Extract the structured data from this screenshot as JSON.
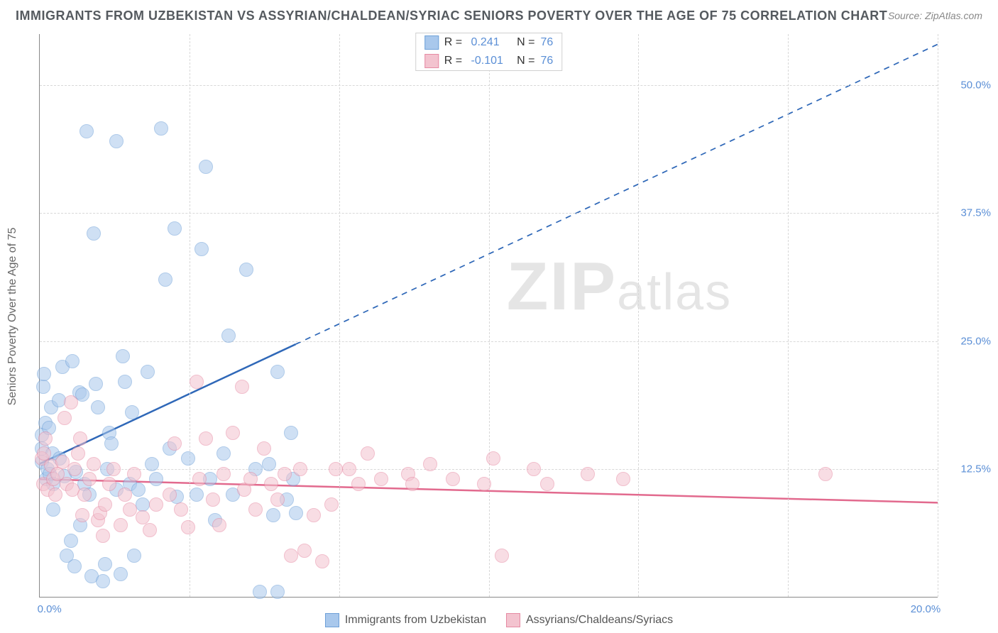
{
  "title": "IMMIGRANTS FROM UZBEKISTAN VS ASSYRIAN/CHALDEAN/SYRIAC SENIORS POVERTY OVER THE AGE OF 75 CORRELATION CHART",
  "source_label": "Source: ZipAtlas.com",
  "y_axis_label": "Seniors Poverty Over the Age of 75",
  "watermark": "ZIPatlas",
  "chart": {
    "type": "scatter-correlation",
    "background_color": "#ffffff",
    "grid_color": "#d8d8d8",
    "axis_color": "#888888",
    "xlim": [
      0,
      20
    ],
    "ylim": [
      0,
      55
    ],
    "x_ticks": [
      0,
      3.33,
      6.67,
      10,
      13.33,
      16.67,
      20
    ],
    "y_ticks": [
      12.5,
      25.0,
      37.5,
      50.0
    ],
    "x_tick_labels": {
      "0": "0.0%",
      "20": "20.0%"
    },
    "y_tick_labels": [
      "12.5%",
      "25.0%",
      "37.5%",
      "50.0%"
    ],
    "y_tick_color": "#5b8fd6",
    "x_tick_color": "#5b8fd6",
    "marker_radius": 10,
    "marker_opacity": 0.55,
    "series": [
      {
        "key": "uzbekistan",
        "label": "Immigrants from Uzbekistan",
        "color_fill": "#a9c8ec",
        "color_stroke": "#6ea0d8",
        "r_value": "0.241",
        "n_value": "76",
        "trend": {
          "x0": 0,
          "y0": 13.0,
          "x1": 20,
          "y1": 54.0,
          "solid_until_x": 5.7,
          "color": "#2f68b8",
          "width": 2.5
        },
        "points": [
          [
            0.05,
            14.5
          ],
          [
            0.05,
            13.2
          ],
          [
            0.05,
            15.8
          ],
          [
            0.08,
            20.5
          ],
          [
            0.1,
            21.8
          ],
          [
            0.12,
            17.0
          ],
          [
            0.15,
            11.5
          ],
          [
            0.18,
            12.5
          ],
          [
            0.2,
            16.5
          ],
          [
            0.22,
            12.0
          ],
          [
            0.25,
            18.5
          ],
          [
            0.28,
            14.0
          ],
          [
            0.3,
            11.0
          ],
          [
            0.42,
            19.2
          ],
          [
            0.45,
            13.5
          ],
          [
            0.5,
            22.5
          ],
          [
            0.55,
            11.8
          ],
          [
            0.6,
            4.0
          ],
          [
            0.7,
            5.5
          ],
          [
            0.72,
            23.0
          ],
          [
            0.78,
            3.0
          ],
          [
            0.8,
            12.2
          ],
          [
            0.88,
            20.0
          ],
          [
            0.95,
            19.8
          ],
          [
            1.0,
            11.0
          ],
          [
            1.05,
            45.5
          ],
          [
            1.1,
            10.0
          ],
          [
            1.15,
            2.0
          ],
          [
            1.2,
            35.5
          ],
          [
            1.25,
            20.8
          ],
          [
            1.3,
            18.5
          ],
          [
            1.4,
            1.5
          ],
          [
            1.45,
            3.2
          ],
          [
            1.5,
            12.5
          ],
          [
            1.55,
            16.0
          ],
          [
            1.6,
            15.0
          ],
          [
            1.7,
            10.5
          ],
          [
            1.8,
            2.2
          ],
          [
            1.85,
            23.5
          ],
          [
            1.9,
            21.0
          ],
          [
            2.0,
            11.0
          ],
          [
            2.05,
            18.0
          ],
          [
            2.1,
            4.0
          ],
          [
            2.2,
            10.5
          ],
          [
            2.3,
            9.0
          ],
          [
            2.4,
            22.0
          ],
          [
            2.5,
            13.0
          ],
          [
            2.6,
            11.5
          ],
          [
            2.7,
            45.8
          ],
          [
            2.8,
            31.0
          ],
          [
            2.9,
            14.5
          ],
          [
            3.0,
            36.0
          ],
          [
            3.05,
            9.8
          ],
          [
            3.3,
            13.5
          ],
          [
            3.5,
            10.0
          ],
          [
            3.6,
            34.0
          ],
          [
            3.7,
            42.0
          ],
          [
            3.8,
            11.5
          ],
          [
            3.9,
            7.5
          ],
          [
            4.1,
            14.0
          ],
          [
            4.2,
            25.5
          ],
          [
            4.3,
            10.0
          ],
          [
            4.6,
            32.0
          ],
          [
            4.8,
            12.5
          ],
          [
            4.9,
            0.5
          ],
          [
            5.1,
            13.0
          ],
          [
            5.2,
            8.0
          ],
          [
            5.3,
            22.0
          ],
          [
            5.5,
            9.5
          ],
          [
            5.6,
            16.0
          ],
          [
            5.65,
            11.5
          ],
          [
            5.7,
            8.2
          ],
          [
            5.3,
            0.5
          ],
          [
            1.7,
            44.5
          ],
          [
            0.3,
            8.5
          ],
          [
            0.9,
            7.0
          ]
        ]
      },
      {
        "key": "assyrian",
        "label": "Assyrians/Chaldeans/Syriacs",
        "color_fill": "#f3c3cf",
        "color_stroke": "#e68aa3",
        "r_value": "-0.101",
        "n_value": "76",
        "trend": {
          "x0": 0,
          "y0": 11.5,
          "x1": 20,
          "y1": 9.2,
          "solid_until_x": 20,
          "color": "#e26a8e",
          "width": 2.5
        },
        "points": [
          [
            0.05,
            13.5
          ],
          [
            0.08,
            11.0
          ],
          [
            0.1,
            14.0
          ],
          [
            0.12,
            15.5
          ],
          [
            0.18,
            10.5
          ],
          [
            0.25,
            12.8
          ],
          [
            0.3,
            11.5
          ],
          [
            0.35,
            10.0
          ],
          [
            0.4,
            12.0
          ],
          [
            0.5,
            13.2
          ],
          [
            0.55,
            17.5
          ],
          [
            0.6,
            11.0
          ],
          [
            0.7,
            19.0
          ],
          [
            0.72,
            10.5
          ],
          [
            0.78,
            12.5
          ],
          [
            0.85,
            14.0
          ],
          [
            0.9,
            15.5
          ],
          [
            0.95,
            8.0
          ],
          [
            1.0,
            10.0
          ],
          [
            1.1,
            11.5
          ],
          [
            1.2,
            13.0
          ],
          [
            1.3,
            7.5
          ],
          [
            1.35,
            8.2
          ],
          [
            1.4,
            6.0
          ],
          [
            1.45,
            9.0
          ],
          [
            1.55,
            11.0
          ],
          [
            1.65,
            12.5
          ],
          [
            1.8,
            7.0
          ],
          [
            1.9,
            10.0
          ],
          [
            2.0,
            8.5
          ],
          [
            2.1,
            12.0
          ],
          [
            2.3,
            7.8
          ],
          [
            2.45,
            6.5
          ],
          [
            2.6,
            9.0
          ],
          [
            2.9,
            10.0
          ],
          [
            3.0,
            15.0
          ],
          [
            3.15,
            8.5
          ],
          [
            3.3,
            6.8
          ],
          [
            3.5,
            21.0
          ],
          [
            3.55,
            11.5
          ],
          [
            3.7,
            15.5
          ],
          [
            3.85,
            9.5
          ],
          [
            4.0,
            7.0
          ],
          [
            4.1,
            12.0
          ],
          [
            4.3,
            16.0
          ],
          [
            4.5,
            20.5
          ],
          [
            4.55,
            10.5
          ],
          [
            4.7,
            11.5
          ],
          [
            4.8,
            8.5
          ],
          [
            5.0,
            14.5
          ],
          [
            5.15,
            11.0
          ],
          [
            5.3,
            9.5
          ],
          [
            5.45,
            12.0
          ],
          [
            5.6,
            4.0
          ],
          [
            5.9,
            4.5
          ],
          [
            6.1,
            8.0
          ],
          [
            6.3,
            3.5
          ],
          [
            6.5,
            9.0
          ],
          [
            6.9,
            12.5
          ],
          [
            7.3,
            14.0
          ],
          [
            7.6,
            11.5
          ],
          [
            8.2,
            12.0
          ],
          [
            8.3,
            11.0
          ],
          [
            8.7,
            13.0
          ],
          [
            9.2,
            11.5
          ],
          [
            9.9,
            11.0
          ],
          [
            10.1,
            13.5
          ],
          [
            10.3,
            4.0
          ],
          [
            11.0,
            12.5
          ],
          [
            11.3,
            11.0
          ],
          [
            12.2,
            12.0
          ],
          [
            13.0,
            11.5
          ],
          [
            17.5,
            12.0
          ],
          [
            6.6,
            12.5
          ],
          [
            7.1,
            11.0
          ],
          [
            5.8,
            12.5
          ]
        ]
      }
    ]
  },
  "legend_bottom": [
    {
      "swatch_fill": "#a9c8ec",
      "swatch_stroke": "#6ea0d8",
      "label": "Immigrants from Uzbekistan"
    },
    {
      "swatch_fill": "#f3c3cf",
      "swatch_stroke": "#e68aa3",
      "label": "Assyrians/Chaldeans/Syriacs"
    }
  ]
}
